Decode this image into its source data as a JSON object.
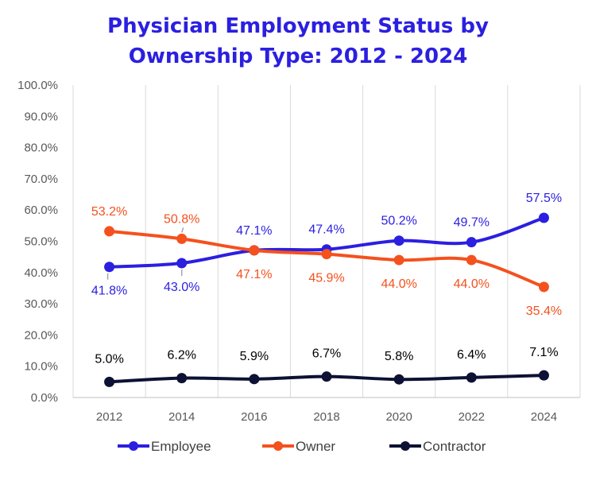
{
  "title_line1": "Physician Employment Status by",
  "title_line2": "Ownership Type: 2012 - 2024",
  "chart_data": {
    "type": "line",
    "title": "Physician Employment Status by Ownership Type: 2012 - 2024",
    "x": [
      "2012",
      "2014",
      "2016",
      "2018",
      "2020",
      "2022",
      "2024"
    ],
    "y_ticks": [
      "0.0%",
      "10.0%",
      "20.0%",
      "30.0%",
      "40.0%",
      "50.0%",
      "60.0%",
      "70.0%",
      "80.0%",
      "90.0%",
      "100.0%"
    ],
    "ylim": [
      0,
      100
    ],
    "grid": "vertical",
    "legend": "bottom",
    "series": [
      {
        "name": "Employee",
        "color": "#2b1fe0",
        "values": [
          41.8,
          43.0,
          47.1,
          47.4,
          50.2,
          49.7,
          57.5
        ],
        "labels": [
          "41.8%",
          "43.0%",
          "47.1%",
          "47.4%",
          "50.2%",
          "49.7%",
          "57.5%"
        ]
      },
      {
        "name": "Owner",
        "color": "#f4511e",
        "values": [
          53.2,
          50.8,
          47.1,
          45.9,
          44.0,
          44.0,
          35.4
        ],
        "labels": [
          "53.2%",
          "50.8%",
          "47.1%",
          "45.9%",
          "44.0%",
          "44.0%",
          "35.4%"
        ]
      },
      {
        "name": "Contractor",
        "color": "#0d1133",
        "values": [
          5.0,
          6.2,
          5.9,
          6.7,
          5.8,
          6.4,
          7.1
        ],
        "labels": [
          "5.0%",
          "6.2%",
          "5.9%",
          "6.7%",
          "5.8%",
          "6.4%",
          "7.1%"
        ]
      }
    ]
  }
}
